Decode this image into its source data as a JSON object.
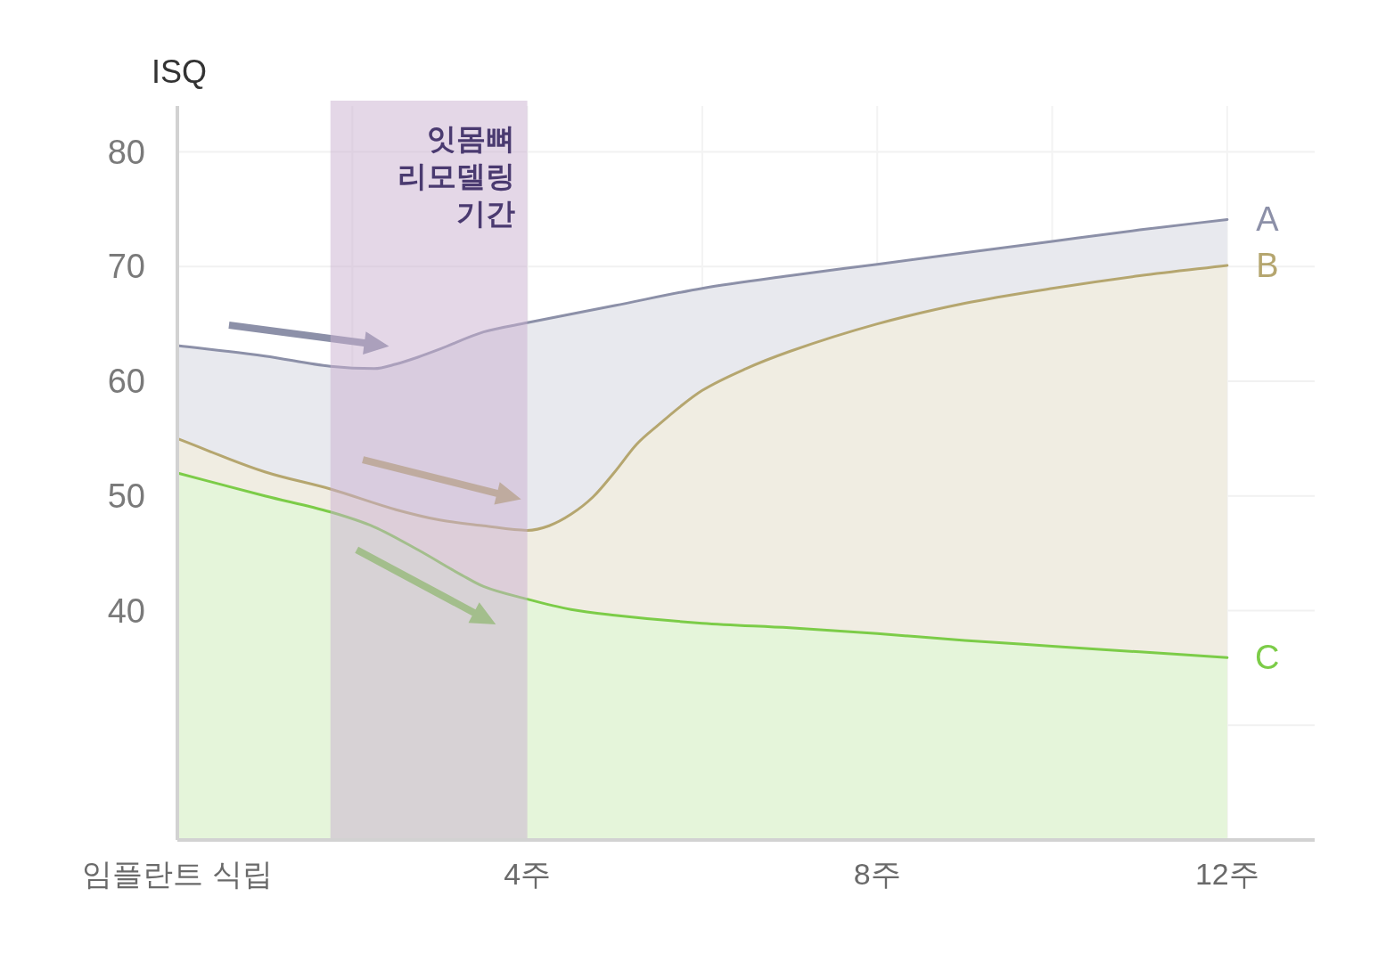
{
  "chart_data": {
    "type": "area",
    "ylabel": "ISQ",
    "series": [
      {
        "name": "A",
        "color": "#8c90a8",
        "x": [
          0,
          1,
          1.75,
          2.25,
          2.5,
          2.75,
          3,
          3.5,
          4,
          5,
          6,
          7,
          8,
          9,
          10,
          11,
          12
        ],
        "values": [
          63.1,
          62.2,
          61.3,
          61.1,
          61.5,
          62.1,
          62.8,
          64.3,
          65.1,
          66.6,
          68.1,
          69.2,
          70.2,
          71.2,
          72.2,
          73.2,
          74.1
        ]
      },
      {
        "name": "B",
        "color": "#b5a66f",
        "x": [
          0,
          1,
          1.75,
          2.5,
          3,
          3.5,
          4,
          4.25,
          4.5,
          4.75,
          5,
          5.25,
          5.5,
          5.75,
          6,
          6.5,
          7,
          8,
          9,
          10,
          11,
          12
        ],
        "values": [
          55.0,
          52.1,
          50.6,
          48.8,
          47.9,
          47.4,
          47.0,
          47.4,
          48.4,
          49.9,
          52.1,
          54.5,
          56.2,
          57.8,
          59.2,
          61.1,
          62.6,
          65.0,
          66.8,
          68.1,
          69.2,
          70.1
        ]
      },
      {
        "name": "C",
        "color": "#7ccc48",
        "x": [
          0,
          1,
          1.75,
          2.25,
          2.75,
          3.25,
          3.5,
          4,
          4.5,
          5,
          6,
          7,
          8,
          9,
          10,
          11,
          12
        ],
        "values": [
          52.0,
          50.0,
          48.6,
          47.3,
          45.3,
          43.1,
          42.1,
          41.0,
          40.1,
          39.6,
          38.9,
          38.5,
          38.0,
          37.4,
          36.9,
          36.4,
          35.9
        ]
      }
    ],
    "xlim": [
      0,
      13
    ],
    "xticks": [
      {
        "value": 0,
        "label": "임플란트 식립"
      },
      {
        "value": 2,
        "label": null
      },
      {
        "value": 4,
        "label": "4주"
      },
      {
        "value": 6,
        "label": null
      },
      {
        "value": 8,
        "label": "8주"
      },
      {
        "value": 10,
        "label": null
      },
      {
        "value": 12,
        "label": "12주"
      }
    ],
    "ylim": [
      20,
      84
    ],
    "yticks": [
      {
        "value": 30,
        "label": null
      },
      40,
      50,
      60,
      70,
      80
    ],
    "grid": true,
    "line_style": "solid",
    "bands": [
      {
        "axis": "x",
        "from": 1.75,
        "to": 4,
        "label": "잇몸뼈\n리모델링\n기간",
        "color": "#c9b0cf"
      }
    ]
  }
}
